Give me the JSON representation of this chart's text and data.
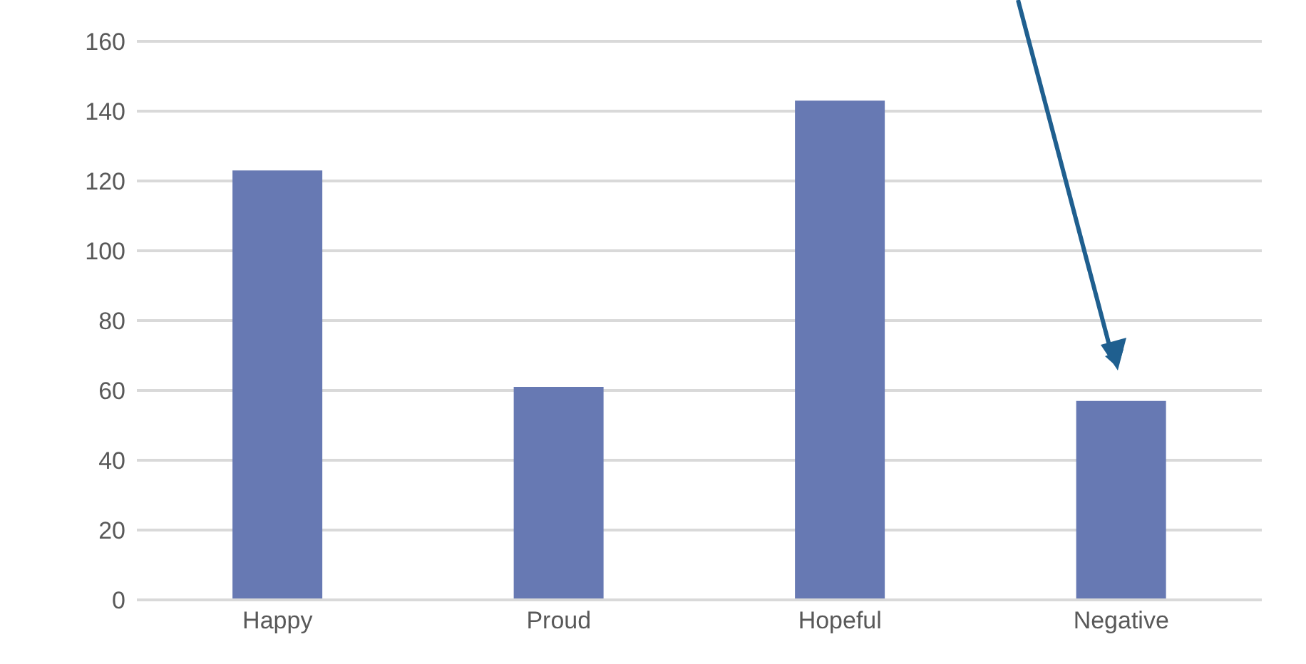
{
  "chart_data": {
    "type": "bar",
    "categories": [
      "Happy",
      "Proud",
      "Hopeful",
      "Negative"
    ],
    "values": [
      123,
      61,
      143,
      57
    ],
    "color": "#6779b3",
    "ylim": [
      0,
      160
    ],
    "yticks": [
      0,
      20,
      40,
      60,
      80,
      100,
      120,
      140,
      160
    ],
    "grid": "y"
  }
}
